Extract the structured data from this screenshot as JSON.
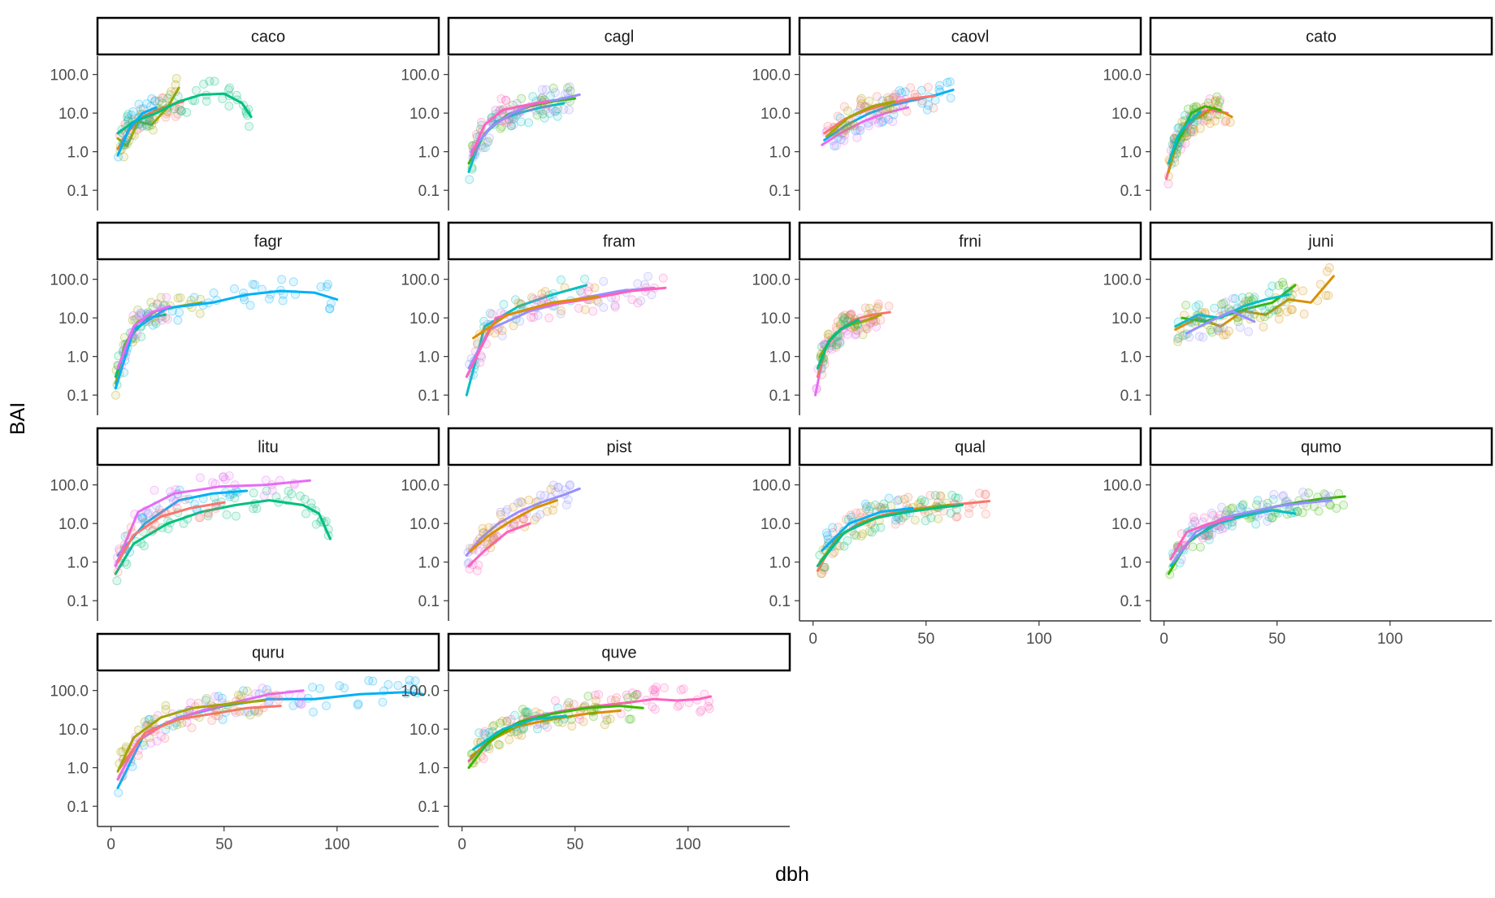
{
  "chart_data": {
    "type": "scatter",
    "layout": "facet_wrap",
    "xlabel": "dbh",
    "ylabel": "BAI",
    "y_scale": "log10",
    "xlim": [
      -6,
      145
    ],
    "ylim": [
      0.03,
      300
    ],
    "x_ticks": [
      0,
      50,
      100
    ],
    "x_tick_labels": [
      "0",
      "50",
      "100"
    ],
    "y_ticks": [
      0.1,
      1,
      10,
      100
    ],
    "y_tick_labels": [
      "0.1",
      "1.0",
      "10.0",
      "100.0"
    ],
    "grid": false,
    "legend": "none",
    "series_colors": [
      "#F8766D",
      "#D89000",
      "#A3A500",
      "#39B600",
      "#00BF7D",
      "#00BFC4",
      "#00B0F6",
      "#9590FF",
      "#E76BF3",
      "#FF62BC"
    ],
    "panels": [
      {
        "name": "caco",
        "series": [
          {
            "x": [
              3,
              8,
              14,
              20,
              26,
              32
            ],
            "y": [
              1.2,
              3.5,
              8,
              12,
              16,
              20
            ]
          },
          {
            "x": [
              3,
              7,
              12,
              18,
              25,
              30
            ],
            "y": [
              2.2,
              1.4,
              6,
              5,
              14,
              45
            ]
          },
          {
            "x": [
              3,
              10,
              20,
              30,
              40,
              50,
              58,
              62
            ],
            "y": [
              3,
              6,
              10,
              20,
              30,
              32,
              18,
              8
            ]
          },
          {
            "x": [
              3,
              8,
              14,
              20
            ],
            "y": [
              0.8,
              4,
              10,
              14
            ]
          }
        ]
      },
      {
        "name": "cagl",
        "series": [
          {
            "x": [
              3,
              10,
              20,
              30,
              40,
              50
            ],
            "y": [
              0.5,
              3,
              9,
              15,
              20,
              24
            ]
          },
          {
            "x": [
              3,
              8,
              15,
              25,
              35,
              45
            ],
            "y": [
              0.3,
              2,
              6,
              10,
              14,
              18
            ]
          },
          {
            "x": [
              4,
              12,
              22,
              32,
              42,
              52
            ],
            "y": [
              1,
              4,
              10,
              18,
              22,
              30
            ]
          },
          {
            "x": [
              4,
              10,
              18,
              28,
              38
            ],
            "y": [
              0.8,
              5,
              12,
              16,
              20
            ]
          }
        ]
      },
      {
        "name": "caovl",
        "series": [
          {
            "x": [
              5,
              15,
              25,
              35,
              45,
              55,
              62
            ],
            "y": [
              2,
              5,
              10,
              16,
              22,
              30,
              40
            ]
          },
          {
            "x": [
              4,
              12,
              22,
              32,
              42
            ],
            "y": [
              1.5,
              3,
              6,
              10,
              14
            ]
          },
          {
            "x": [
              5,
              14,
              24,
              34,
              44,
              54
            ],
            "y": [
              3,
              7,
              12,
              18,
              24,
              28
            ]
          },
          {
            "x": [
              6,
              16,
              26,
              36
            ],
            "y": [
              2.5,
              8,
              15,
              20
            ]
          }
        ]
      },
      {
        "name": "cato",
        "series": [
          {
            "x": [
              1,
              5,
              10,
              15,
              20,
              28
            ],
            "y": [
              0.2,
              1.5,
              4,
              9,
              12,
              10
            ]
          },
          {
            "x": [
              2,
              6,
              10,
              16,
              22,
              30
            ],
            "y": [
              0.3,
              2,
              6,
              8,
              14,
              8
            ]
          },
          {
            "x": [
              3,
              8,
              12,
              18,
              25
            ],
            "y": [
              0.8,
              3,
              10,
              15,
              12
            ]
          },
          {
            "x": [
              2,
              6,
              11,
              16
            ],
            "y": [
              0.5,
              2.5,
              6,
              11
            ]
          }
        ]
      },
      {
        "name": "fagr",
        "series": [
          {
            "x": [
              2,
              6,
              12,
              20,
              30,
              40
            ],
            "y": [
              0.2,
              2,
              8,
              15,
              20,
              25
            ]
          },
          {
            "x": [
              2,
              8,
              16,
              24
            ],
            "y": [
              0.3,
              3,
              10,
              12
            ]
          },
          {
            "x": [
              2,
              10,
              25,
              45,
              60,
              75,
              90,
              100
            ],
            "y": [
              0.15,
              5,
              18,
              25,
              40,
              50,
              45,
              30
            ]
          },
          {
            "x": [
              3,
              10,
              18,
              26
            ],
            "y": [
              0.5,
              6,
              14,
              20
            ]
          }
        ]
      },
      {
        "name": "fram",
        "series": [
          {
            "x": [
              2,
              10,
              25,
              40,
              55
            ],
            "y": [
              0.1,
              6,
              20,
              40,
              70
            ]
          },
          {
            "x": [
              3,
              12,
              30,
              50,
              70,
              85
            ],
            "y": [
              0.5,
              5,
              15,
              30,
              50,
              60
            ]
          },
          {
            "x": [
              2,
              15,
              35,
              55,
              75,
              90
            ],
            "y": [
              0.3,
              10,
              20,
              30,
              50,
              60
            ]
          },
          {
            "x": [
              5,
              20,
              40,
              60
            ],
            "y": [
              3,
              12,
              25,
              35
            ]
          }
        ]
      },
      {
        "name": "frni",
        "series": [
          {
            "x": [
              1,
              5,
              10,
              15,
              20,
              28
            ],
            "y": [
              0.1,
              1.5,
              4,
              6,
              8,
              10
            ]
          },
          {
            "x": [
              2,
              6,
              12,
              18,
              26,
              34
            ],
            "y": [
              0.3,
              2,
              5,
              9,
              12,
              14
            ]
          },
          {
            "x": [
              3,
              8,
              14,
              22,
              30
            ],
            "y": [
              1,
              3,
              6,
              8,
              12
            ]
          },
          {
            "x": [
              2,
              7,
              12,
              20
            ],
            "y": [
              0.5,
              2.5,
              5,
              9
            ]
          }
        ]
      },
      {
        "name": "juni",
        "series": [
          {
            "x": [
              5,
              15,
              25,
              35,
              45,
              55,
              65,
              75
            ],
            "y": [
              5,
              10,
              6,
              15,
              12,
              30,
              25,
              120
            ]
          },
          {
            "x": [
              8,
              18,
              28,
              38,
              48,
              58
            ],
            "y": [
              10,
              8,
              12,
              18,
              25,
              70
            ]
          },
          {
            "x": [
              5,
              15,
              25,
              35,
              45,
              55
            ],
            "y": [
              6,
              12,
              10,
              20,
              30,
              40
            ]
          },
          {
            "x": [
              10,
              20,
              30,
              40
            ],
            "y": [
              4,
              8,
              15,
              8
            ]
          }
        ]
      },
      {
        "name": "litu",
        "series": [
          {
            "x": [
              2,
              10,
              25,
              40,
              55,
              70,
              85,
              92,
              97
            ],
            "y": [
              0.5,
              3,
              10,
              20,
              30,
              40,
              30,
              18,
              4
            ]
          },
          {
            "x": [
              3,
              15,
              30,
              45,
              60
            ],
            "y": [
              1.5,
              10,
              40,
              60,
              70
            ]
          },
          {
            "x": [
              2,
              12,
              28,
              48,
              68,
              88
            ],
            "y": [
              0.8,
              20,
              60,
              90,
              100,
              130
            ]
          },
          {
            "x": [
              3,
              10,
              22,
              35,
              50
            ],
            "y": [
              1,
              5,
              15,
              25,
              35
            ]
          }
        ]
      },
      {
        "name": "pist",
        "series": [
          {
            "x": [
              2,
              8,
              16,
              25,
              35,
              45,
              52
            ],
            "y": [
              1.5,
              4,
              10,
              20,
              35,
              55,
              80
            ]
          },
          {
            "x": [
              3,
              10,
              20,
              30
            ],
            "y": [
              0.8,
              2,
              6,
              10
            ]
          },
          {
            "x": [
              4,
              12,
              22,
              32,
              42
            ],
            "y": [
              2,
              5,
              12,
              25,
              40
            ]
          }
        ]
      },
      {
        "name": "qual",
        "series": [
          {
            "x": [
              2,
              10,
              20,
              30,
              40,
              50,
              60,
              70,
              78
            ],
            "y": [
              0.6,
              4,
              10,
              16,
              22,
              26,
              30,
              34,
              38
            ]
          },
          {
            "x": [
              3,
              12,
              24,
              36,
              48,
              60
            ],
            "y": [
              1,
              5,
              12,
              18,
              24,
              30
            ]
          },
          {
            "x": [
              2,
              14,
              28,
              42,
              56,
              66
            ],
            "y": [
              0.8,
              6,
              14,
              20,
              26,
              30
            ]
          },
          {
            "x": [
              4,
              16,
              30,
              44
            ],
            "y": [
              2,
              10,
              20,
              25
            ]
          }
        ]
      },
      {
        "name": "qumo",
        "series": [
          {
            "x": [
              2,
              10,
              20,
              30,
              40,
              50,
              60,
              70,
              80
            ],
            "y": [
              0.5,
              3,
              8,
              14,
              20,
              28,
              36,
              44,
              50
            ]
          },
          {
            "x": [
              3,
              12,
              24,
              36,
              48,
              58
            ],
            "y": [
              0.8,
              4,
              10,
              16,
              22,
              18
            ]
          },
          {
            "x": [
              4,
              14,
              26,
              38,
              50,
              62,
              74
            ],
            "y": [
              1,
              6,
              14,
              20,
              28,
              34,
              40
            ]
          },
          {
            "x": [
              3,
              10,
              20,
              30
            ],
            "y": [
              1.2,
              6,
              10,
              14
            ]
          }
        ]
      },
      {
        "name": "quru",
        "series": [
          {
            "x": [
              3,
              15,
              30,
              50,
              70,
              90,
              110,
              130,
              138
            ],
            "y": [
              0.3,
              8,
              20,
              40,
              60,
              60,
              80,
              90,
              80
            ]
          },
          {
            "x": [
              3,
              12,
              25,
              40,
              55,
              70,
              85
            ],
            "y": [
              0.5,
              5,
              15,
              30,
              50,
              80,
              100
            ]
          },
          {
            "x": [
              4,
              15,
              30,
              45,
              60,
              75
            ],
            "y": [
              1,
              8,
              18,
              25,
              35,
              40
            ]
          },
          {
            "x": [
              3,
              10,
              22,
              36,
              52,
              68
            ],
            "y": [
              0.8,
              6,
              20,
              35,
              45,
              55
            ]
          }
        ]
      },
      {
        "name": "quve",
        "series": [
          {
            "x": [
              3,
              15,
              30,
              45,
              60,
              75,
              85,
              95,
              105,
              110
            ],
            "y": [
              1.5,
              8,
              20,
              30,
              40,
              50,
              60,
              55,
              60,
              70
            ]
          },
          {
            "x": [
              4,
              15,
              25,
              40,
              55,
              70
            ],
            "y": [
              2,
              6,
              12,
              18,
              25,
              30
            ]
          },
          {
            "x": [
              3,
              12,
              25,
              40,
              55,
              70,
              80
            ],
            "y": [
              1,
              5,
              15,
              25,
              35,
              40,
              35
            ]
          },
          {
            "x": [
              5,
              18,
              32,
              46
            ],
            "y": [
              3,
              10,
              18,
              22
            ]
          }
        ]
      }
    ]
  }
}
